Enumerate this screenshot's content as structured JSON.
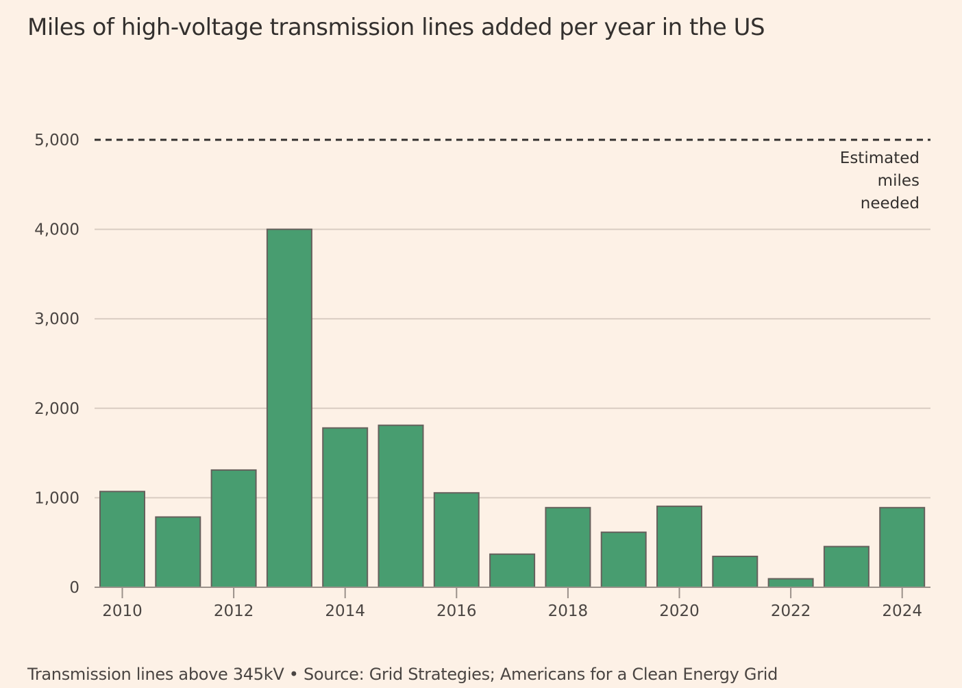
{
  "title": "Miles of high-voltage transmission lines added per year in the US",
  "footer": "Transmission lines above 345kV • Source: Grid Strategies; Americans for a Clean Energy Grid",
  "colors": {
    "background": "#fdf1e6",
    "bar_fill": "#489d70",
    "bar_stroke": "#66605c",
    "gridline": "#d9ccc2",
    "reference_line": "#33302e",
    "text": "#33302e"
  },
  "chart_data": {
    "type": "bar",
    "title": "Miles of high-voltage transmission lines added per year in the US",
    "xlabel": "",
    "ylabel": "",
    "categories": [
      "2010",
      "2011",
      "2012",
      "2013",
      "2014",
      "2015",
      "2016",
      "2017",
      "2018",
      "2019",
      "2020",
      "2021",
      "2022",
      "2023",
      "2024"
    ],
    "values": [
      1070,
      785,
      1310,
      4000,
      1780,
      1810,
      1055,
      370,
      890,
      615,
      905,
      345,
      95,
      455,
      890
    ],
    "ylim": [
      0,
      5000
    ],
    "yticks": [
      0,
      1000,
      2000,
      3000,
      4000,
      5000
    ],
    "ytick_labels": [
      "0",
      "1,000",
      "2,000",
      "3,000",
      "4,000",
      "5,000"
    ],
    "xtick_labels": [
      "2010",
      "2012",
      "2014",
      "2016",
      "2018",
      "2020",
      "2022",
      "2024"
    ],
    "grid": true,
    "reference_line": {
      "value": 5000,
      "style": "dashed",
      "label_lines": [
        "Estimated",
        "miles",
        "needed"
      ]
    },
    "note": "Transmission lines above 345kV",
    "source": "Source: Grid Strategies; Americans for a Clean Energy Grid"
  }
}
